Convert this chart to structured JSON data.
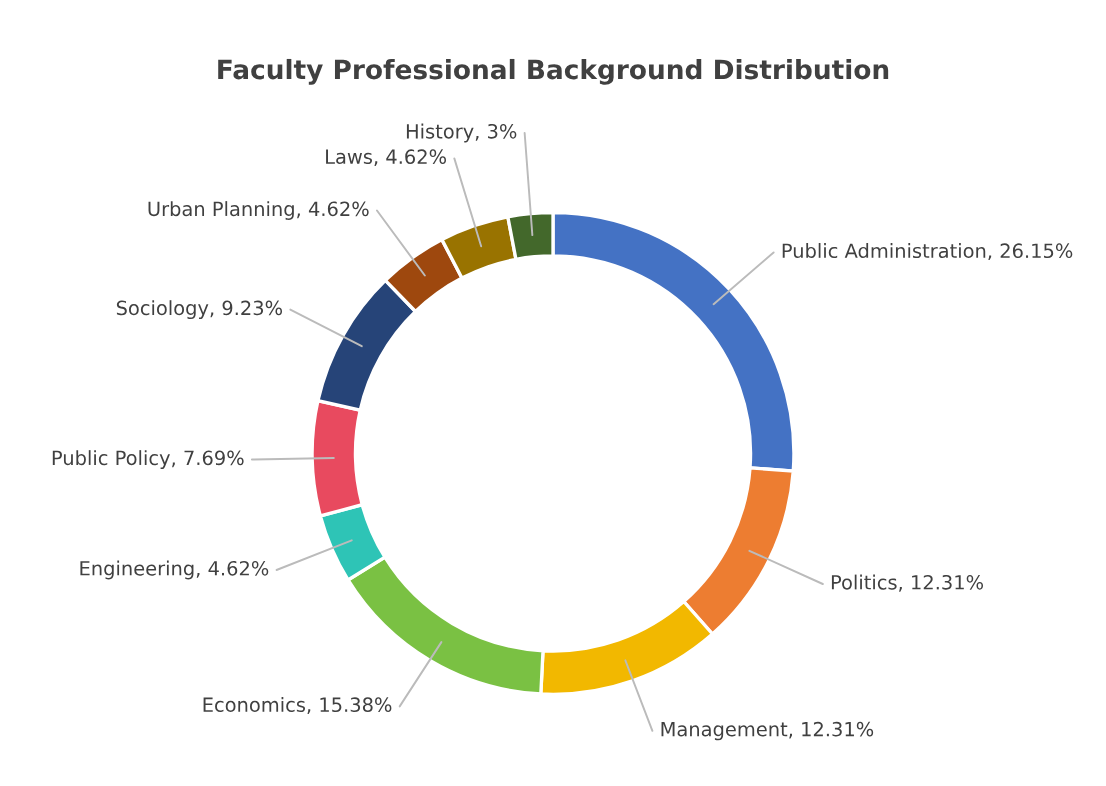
{
  "chart_data": {
    "type": "donut",
    "title": "Faculty Professional Background Distribution",
    "categories": [
      "Public Administration",
      "Politics",
      "Management",
      "Economics",
      "Engineering",
      "Public Policy",
      "Sociology",
      "Urban Planning",
      "Laws",
      "History"
    ],
    "values": [
      26.15,
      12.31,
      12.31,
      15.38,
      4.62,
      7.69,
      9.23,
      4.62,
      4.62,
      3
    ],
    "value_labels": [
      "26.15%",
      "12.31%",
      "12.31%",
      "15.38%",
      "4.62%",
      "7.69%",
      "9.23%",
      "4.62%",
      "4.62%",
      "3%"
    ],
    "colors": [
      "#4472c4",
      "#ed7d31",
      "#f2b800",
      "#7ac143",
      "#2ec4b6",
      "#e84a5f",
      "#264478",
      "#9e480e",
      "#997300",
      "#43682b"
    ],
    "legend": false
  }
}
